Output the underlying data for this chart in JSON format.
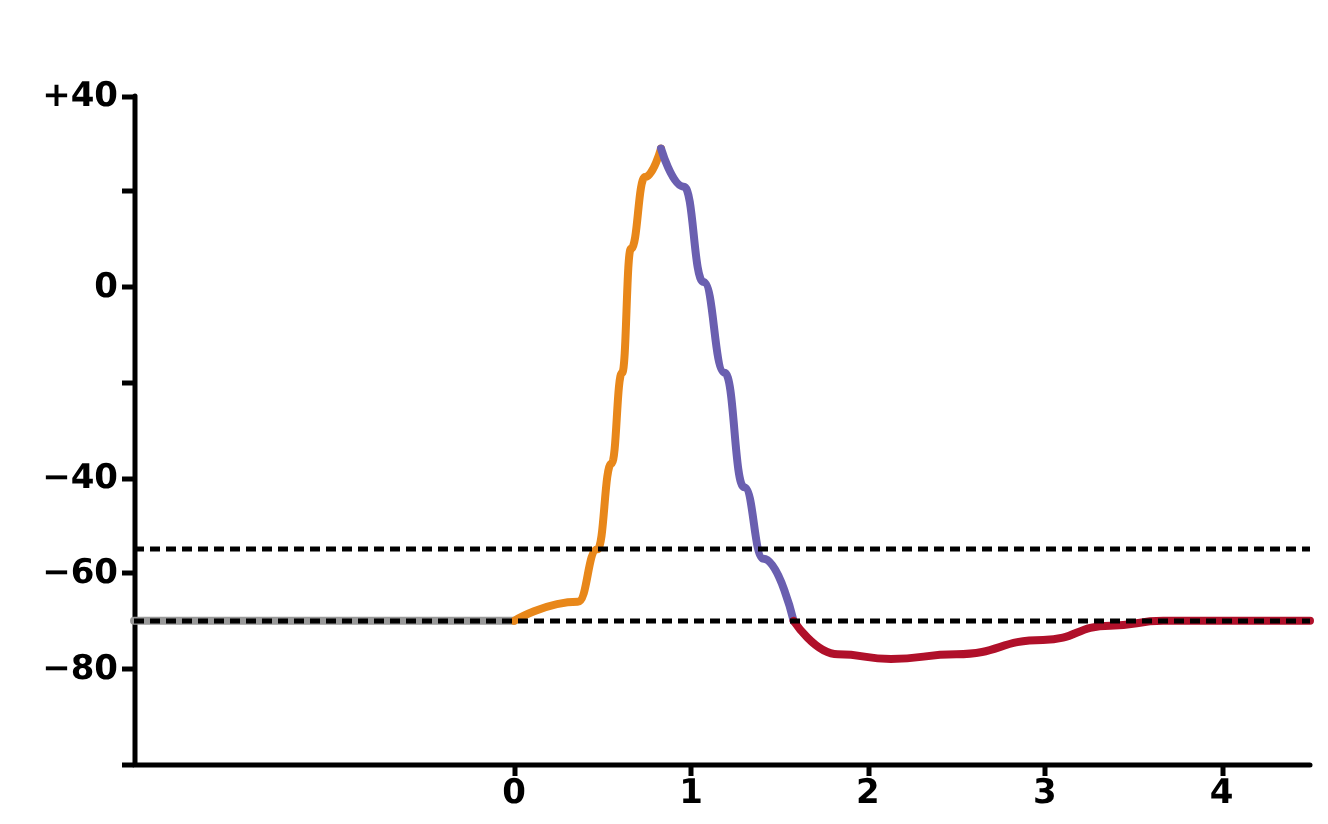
{
  "chart_data": {
    "type": "line",
    "xlim": [
      -2.15,
      4.5
    ],
    "xticks": [
      0,
      1,
      2,
      3,
      4
    ],
    "ylim": [
      -100,
      40
    ],
    "yticks": [
      {
        "value": 40,
        "label": "+40"
      },
      {
        "value": 20,
        "label": null
      },
      0,
      {
        "value": -20,
        "label": null
      },
      {
        "value": -40,
        "label": "−40"
      },
      {
        "value": -60,
        "label": "−60"
      },
      {
        "value": -80,
        "label": "−80"
      },
      {
        "value": -100,
        "label": null
      }
    ],
    "grid": false,
    "marker": "none",
    "line_style": "solid",
    "ref_lines": [
      {
        "axis": "y",
        "value": -55,
        "color": "#000000",
        "line_style": "dotted"
      },
      {
        "axis": "y",
        "value": -70,
        "color": "#000000",
        "line_style": "dotted"
      }
    ],
    "series": [
      {
        "color": "#999999",
        "x": [
          -2.15,
          0
        ],
        "values": [
          -70,
          -70
        ]
      },
      {
        "color": "#e8871a",
        "x": [
          0,
          0.36,
          0.47,
          0.55,
          0.61,
          0.66,
          0.74,
          0.83
        ],
        "values": [
          -70,
          -66,
          -55,
          -37,
          -18,
          8,
          23,
          29
        ]
      },
      {
        "color": "#6a5fb0",
        "x": [
          0.83,
          0.96,
          1.07,
          1.19,
          1.3,
          1.41,
          1.58
        ],
        "values": [
          29,
          21,
          1,
          -18,
          -42,
          -57,
          -70
        ]
      },
      {
        "color": "#b0102a",
        "x": [
          1.58,
          1.83,
          2.13,
          2.5,
          2.99,
          3.37,
          3.67,
          4.5
        ],
        "values": [
          -70,
          -77,
          -78,
          -77,
          -74,
          -71,
          -70,
          -70
        ]
      }
    ]
  }
}
